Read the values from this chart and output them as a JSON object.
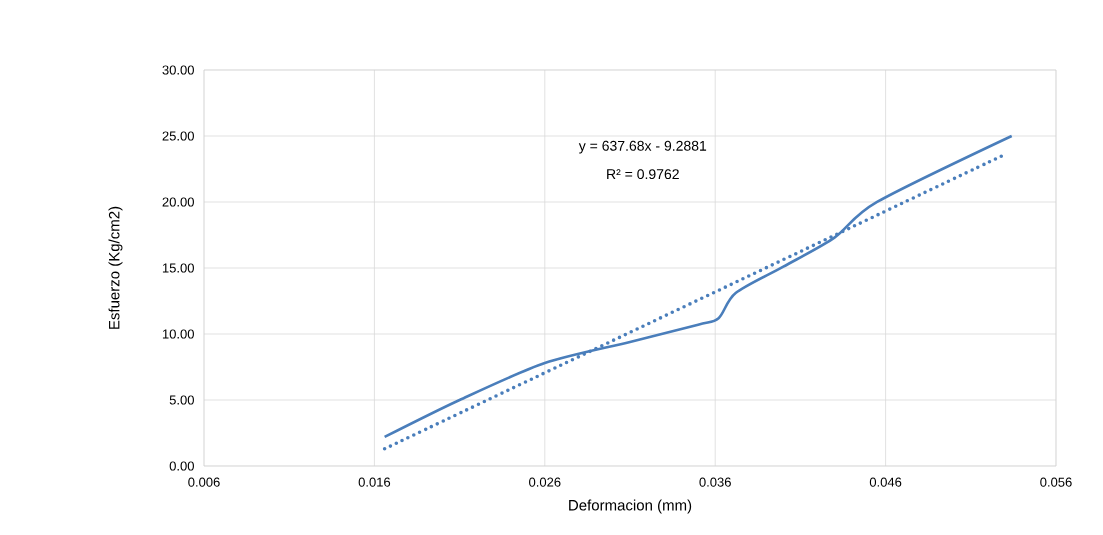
{
  "chart_data": {
    "type": "line",
    "xlabel": "Deformacion (mm)",
    "ylabel": "Esfuerzo (Kg/cm2)",
    "xlim": [
      0.006,
      0.056
    ],
    "ylim": [
      0,
      30
    ],
    "xticks": [
      {
        "value": 0.006,
        "label": "0.006"
      },
      {
        "value": 0.016,
        "label": "0.016"
      },
      {
        "value": 0.026,
        "label": "0.026"
      },
      {
        "value": 0.036,
        "label": "0.036"
      },
      {
        "value": 0.046,
        "label": "0.046"
      },
      {
        "value": 0.056,
        "label": "0.056"
      }
    ],
    "yticks": [
      {
        "value": 0,
        "label": "0.00"
      },
      {
        "value": 5,
        "label": "5.00"
      },
      {
        "value": 10,
        "label": "10.00"
      },
      {
        "value": 15,
        "label": "15.00"
      },
      {
        "value": 20,
        "label": "20.00"
      },
      {
        "value": 25,
        "label": "25.00"
      },
      {
        "value": 30,
        "label": "30.00"
      }
    ],
    "grid": true,
    "marker": "none",
    "series": [
      {
        "color": "#4a7ebb",
        "line_style": "solid",
        "x": [
          0.0166,
          0.021,
          0.026,
          0.031,
          0.035,
          0.0362,
          0.0372,
          0.04,
          0.043,
          0.0455,
          0.0534
        ],
        "values": [
          2.2,
          5.0,
          7.8,
          9.4,
          10.7,
          11.2,
          13.1,
          15.1,
          17.3,
          20.0,
          25.0
        ]
      },
      {
        "color": "#4a7ebb",
        "line_style": "dotted",
        "x": [
          0.0166,
          0.053
        ],
        "values": [
          1.3,
          23.6
        ]
      }
    ],
    "annotations": [
      "y = 637.68x - 9.2881",
      "R² = 0.9762"
    ]
  }
}
